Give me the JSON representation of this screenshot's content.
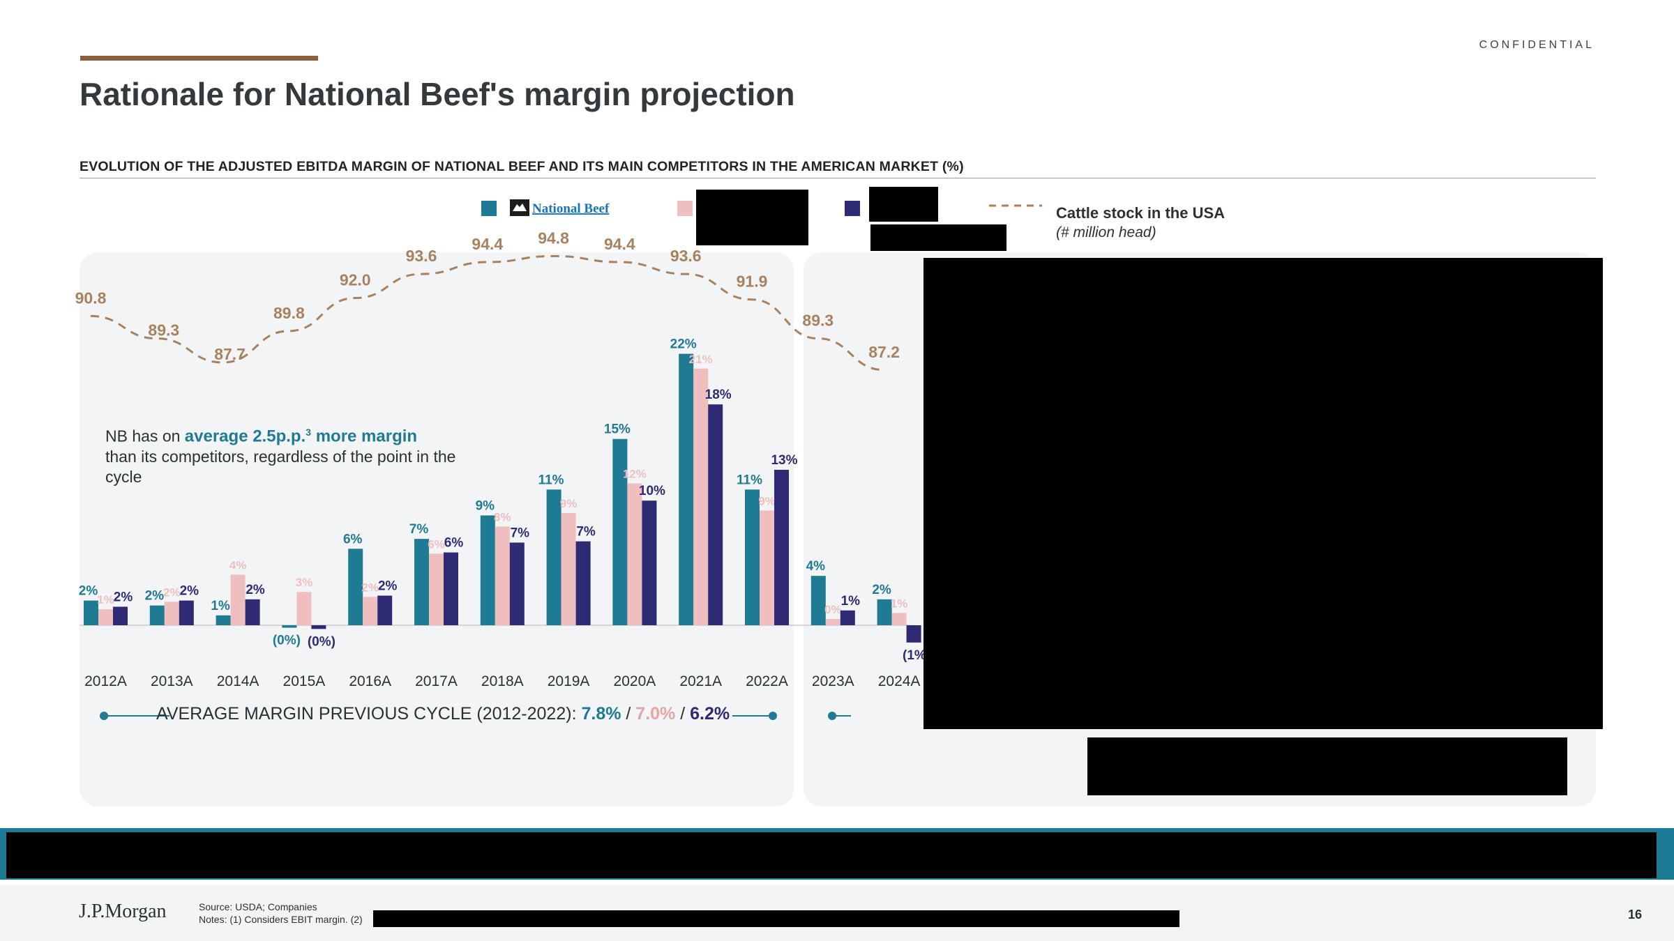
{
  "header": {
    "confidential": "CONFIDENTIAL",
    "title": "Rationale for National Beef's margin projection",
    "subtitle": "EVOLUTION OF THE ADJUSTED EBITDA MARGIN OF NATIONAL BEEF AND ITS MAIN COMPETITORS IN THE AMERICAN MARKET (%)"
  },
  "legend": {
    "national_beef_logo_text": "National Beef",
    "cattle_label": "Cattle stock in the USA",
    "cattle_sublabel": "(# million head)"
  },
  "note": {
    "prefix": "NB has on ",
    "highlight": "average 2.5p.p.",
    "superscript": "3",
    "highlight2": " more margin",
    "rest": "than its competitors, regardless of the point in the cycle"
  },
  "average": {
    "label": "AVERAGE MARGIN PREVIOUS CYCLE (2012-2022): ",
    "v1": "7.8%",
    "sep1": " / ",
    "v2": "7.0%",
    "sep2": " / ",
    "v3": "6.2%"
  },
  "colors": {
    "national_beef": "#1f7a94",
    "competitor_pink": "#efbfc0",
    "competitor_navy": "#2e2a74",
    "cattle_line": "#a8825f"
  },
  "chart_data": {
    "type": "bar",
    "categories": [
      "2012A",
      "2013A",
      "2014A",
      "2015A",
      "2016A",
      "2017A",
      "2018A",
      "2019A",
      "2020A",
      "2021A",
      "2022A",
      "2023A",
      "2024A"
    ],
    "series": [
      {
        "name": "National Beef",
        "values": [
          2.0,
          1.6,
          0.8,
          -0.2,
          6.2,
          7.0,
          8.9,
          11.0,
          15.1,
          22.0,
          11.0,
          4.0,
          2.1
        ],
        "labels": [
          "2%",
          "2%",
          "1%",
          "(0%)",
          "6%",
          "7%",
          "9%",
          "11%",
          "15%",
          "22%",
          "11%",
          "4%",
          "2%"
        ]
      },
      {
        "name": "",
        "values": [
          1.3,
          1.9,
          4.1,
          2.7,
          2.3,
          5.8,
          8.0,
          9.1,
          11.5,
          20.8,
          9.3,
          0.5,
          1.0
        ],
        "labels": [
          "1%",
          "2%",
          "4%",
          "3%",
          "2%",
          "6%",
          "8%",
          "9%",
          "12%",
          "21%",
          "9%",
          "0%",
          "1%"
        ]
      },
      {
        "name": "",
        "values": [
          1.5,
          2.0,
          2.1,
          -0.3,
          2.4,
          5.9,
          6.7,
          6.8,
          10.1,
          17.9,
          12.6,
          1.2,
          -1.4
        ],
        "labels": [
          "2%",
          "2%",
          "2%",
          "(0%)",
          "2%",
          "6%",
          "7%",
          "7%",
          "10%",
          "18%",
          "13%",
          "1%",
          "(1%)"
        ]
      }
    ],
    "line_series": {
      "name": "Cattle stock in the USA",
      "unit": "# million head",
      "x": [
        "2012",
        "2013",
        "2014",
        "2015",
        "2016",
        "2017",
        "2018",
        "2019",
        "2020",
        "2021",
        "2022",
        "2023",
        "2024"
      ],
      "values": [
        90.8,
        89.3,
        87.7,
        89.8,
        92.0,
        93.6,
        94.4,
        94.8,
        94.4,
        93.6,
        91.9,
        89.3,
        87.2
      ],
      "labels": [
        "90.8",
        "89.3",
        "87.7",
        "89.8",
        "92.0",
        "93.6",
        "94.4",
        "94.8",
        "94.4",
        "93.6",
        "91.9",
        "89.3",
        "87.2"
      ]
    },
    "legend_position": "top",
    "grid": false
  },
  "footer": {
    "brand": "J.P.Morgan",
    "source": "Source: USDA; Companies",
    "notes": "Notes: (1) Considers EBIT margin. (2)",
    "page": "16"
  }
}
